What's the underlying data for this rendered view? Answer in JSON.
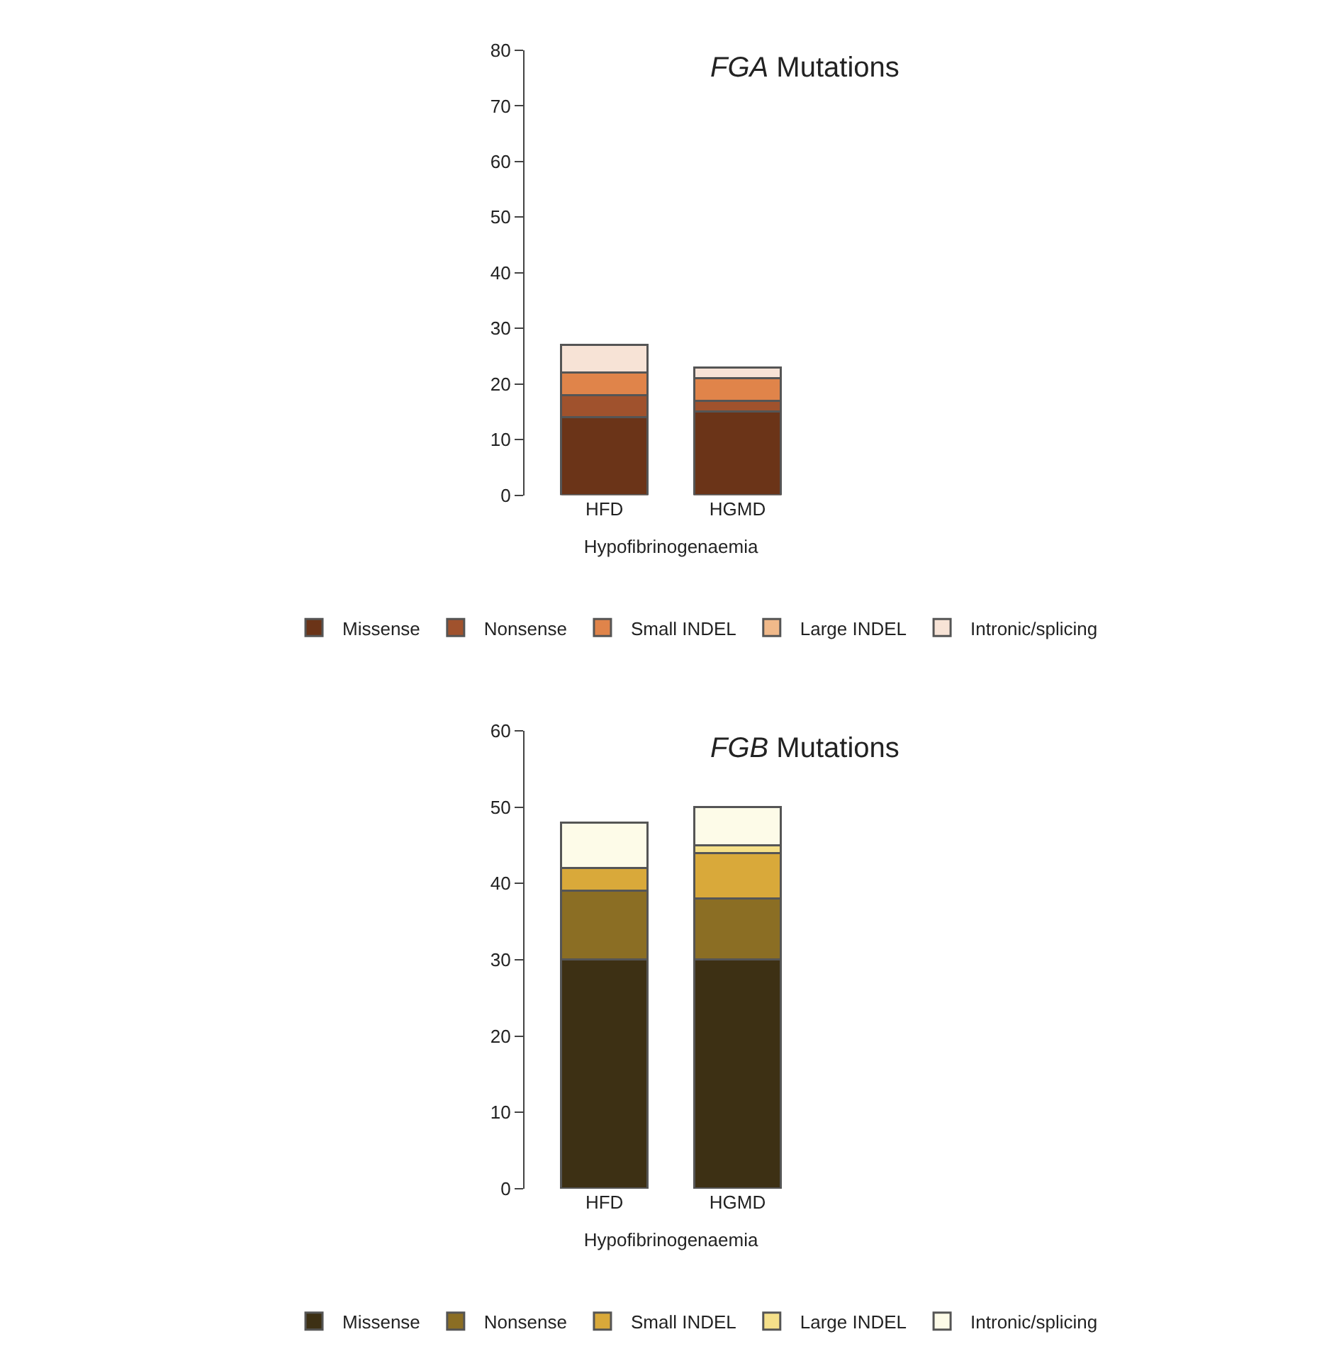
{
  "chart_data": [
    {
      "type": "bar",
      "stacked": true,
      "title": "FGA Mutations",
      "xlabel": "Hypofibrinogenaemia",
      "categories": [
        "HFD",
        "HGMD"
      ],
      "ylim": [
        0,
        80
      ],
      "yticks": [
        0,
        10,
        20,
        30,
        40,
        50,
        60,
        70,
        80
      ],
      "legend": "bottom",
      "series": [
        {
          "name": "Missense",
          "color": "#6b3418",
          "values": [
            14,
            15
          ]
        },
        {
          "name": "Nonsense",
          "color": "#a0522d",
          "values": [
            4,
            2
          ]
        },
        {
          "name": "Small INDEL",
          "color": "#e0844a",
          "values": [
            4,
            4
          ]
        },
        {
          "name": "Large INDEL",
          "color": "#f0b98a",
          "values": [
            0,
            0
          ]
        },
        {
          "name": "Intronic/splicing",
          "color": "#f7e3d6",
          "values": [
            5,
            2
          ]
        }
      ]
    },
    {
      "type": "bar",
      "stacked": true,
      "title": "FGB Mutations",
      "xlabel": "Hypofibrinogenaemia",
      "categories": [
        "HFD",
        "HGMD"
      ],
      "ylim": [
        0,
        60
      ],
      "yticks": [
        0,
        10,
        20,
        30,
        40,
        50,
        60
      ],
      "legend": "bottom",
      "series": [
        {
          "name": "Missense",
          "color": "#3d3014",
          "values": [
            30,
            30
          ]
        },
        {
          "name": "Nonsense",
          "color": "#8b6e24",
          "values": [
            9,
            8
          ]
        },
        {
          "name": "Small INDEL",
          "color": "#d9a93a",
          "values": [
            3,
            6
          ]
        },
        {
          "name": "Large INDEL",
          "color": "#f5e08a",
          "values": [
            0,
            1
          ]
        },
        {
          "name": "Intronic/splicing",
          "color": "#fdfbe8",
          "values": [
            6,
            5
          ]
        }
      ]
    }
  ]
}
